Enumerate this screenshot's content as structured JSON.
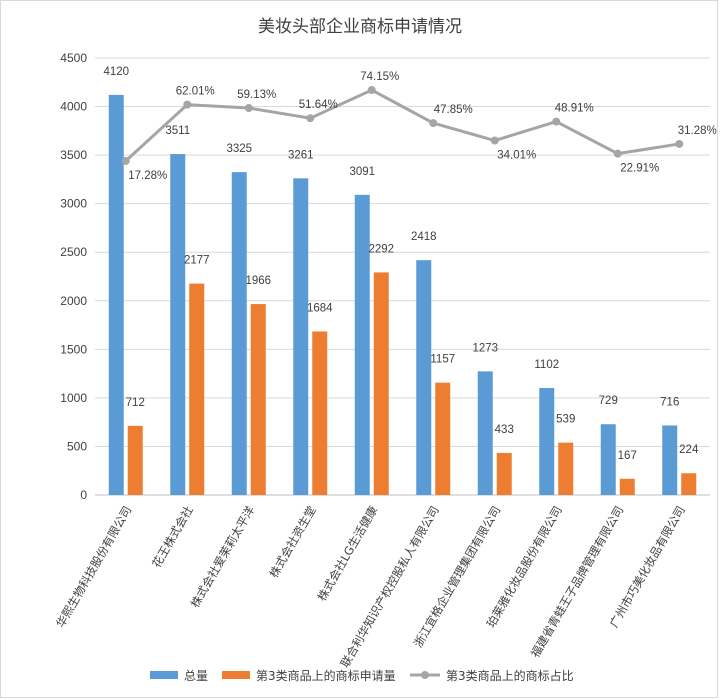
{
  "chart_data": {
    "type": "bar",
    "title": "美妆头部企业商标申请情况",
    "categories": [
      "华熙生物科技股份有限公司",
      "花王株式会社",
      "株式会社爱茉莉太平洋",
      "株式会社资生堂",
      "株式会社LG生活健康",
      "联合利华知识产权控股私人有限公司",
      "浙江宜格企业管理集团有限公司",
      "珀莱雅化妆品股份有限公司",
      "福建省青蛙王子品牌管理有限公司",
      "广州市巧美化妆品有限公司"
    ],
    "series": [
      {
        "name": "总量",
        "kind": "bar",
        "color": "#5b9bd5",
        "values": [
          4120,
          3511,
          3325,
          3261,
          3091,
          2418,
          1273,
          1102,
          729,
          716
        ]
      },
      {
        "name": "第3类商品上的商标申请量",
        "kind": "bar",
        "color": "#ed7d31",
        "values": [
          712,
          2177,
          1966,
          1684,
          2292,
          1157,
          433,
          539,
          167,
          224
        ]
      },
      {
        "name": "第3类商品上的商标占比",
        "kind": "line",
        "color": "#a5a5a5",
        "values": [
          "17.28%",
          "62.01%",
          "59.13%",
          "51.64%",
          "74.15%",
          "47.85%",
          "34.01%",
          "48.91%",
          "22.91%",
          "31.28%"
        ],
        "plot_values": [
          3440,
          4020,
          3985,
          3880,
          4170,
          3830,
          3650,
          3845,
          3515,
          3615
        ]
      }
    ],
    "yticks": [
      0,
      500,
      1000,
      1500,
      2000,
      2500,
      3000,
      3500,
      4000,
      4500
    ],
    "ylim": [
      0,
      4500
    ],
    "xlabel": "",
    "ylabel": "",
    "grid": true,
    "legend": "bottom"
  }
}
